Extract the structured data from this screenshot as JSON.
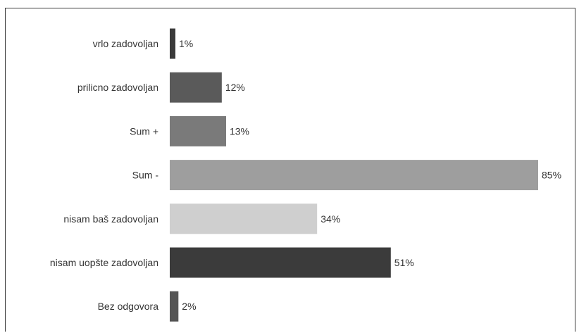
{
  "chart_data": {
    "type": "bar",
    "orientation": "horizontal",
    "categories": [
      "vrlo zadovoljan",
      "prilicno zadovoljan",
      "Sum +",
      "Sum -",
      "nisam baš zadovoljan",
      "nisam uopšte zadovoljan",
      "Bez odgovora"
    ],
    "values": [
      1,
      12,
      13,
      85,
      34,
      51,
      2
    ],
    "value_labels": [
      "1%",
      "12%",
      "13%",
      "85%",
      "34%",
      "51%",
      "2%"
    ],
    "colors": [
      "#3a3a3a",
      "#5a5a5a",
      "#7a7a7a",
      "#9e9e9e",
      "#cfcfcf",
      "#3b3b3b",
      "#555555"
    ],
    "xlim": [
      0,
      85
    ],
    "grid": false,
    "legend": "none"
  }
}
